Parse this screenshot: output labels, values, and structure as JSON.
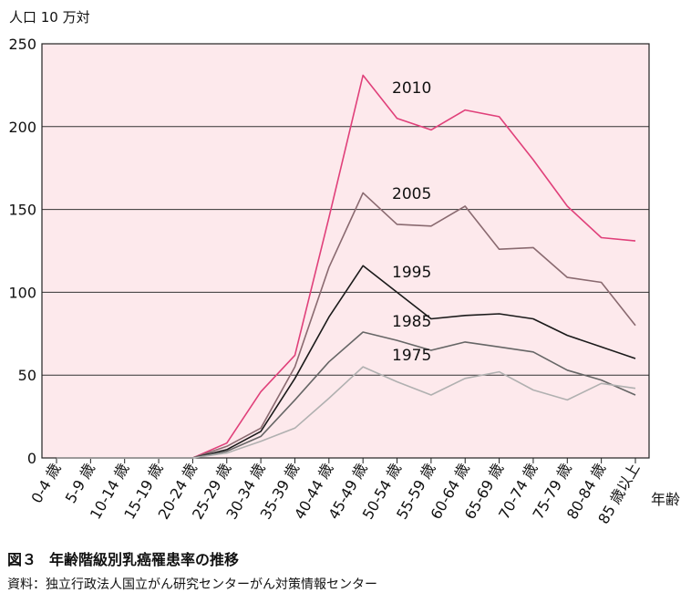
{
  "chart_data": {
    "type": "line",
    "ylabel": "人口 10 万対",
    "xlabel": "年齢",
    "ylim": [
      0,
      250
    ],
    "yticks": [
      0,
      50,
      100,
      150,
      200,
      250
    ],
    "grid": true,
    "background": "#fde9ec",
    "categories": [
      "0-4 歳",
      "5-9 歳",
      "10-14 歳",
      "15-19 歳",
      "20-24 歳",
      "25-29 歳",
      "30-34 歳",
      "35-39 歳",
      "40-44 歳",
      "45-49 歳",
      "50-54 歳",
      "55-59 歳",
      "60-64 歳",
      "65-69 歳",
      "70-74 歳",
      "75-79 歳",
      "80-84 歳",
      "85 歳以上"
    ],
    "series": [
      {
        "name": "2010",
        "color": "#e0407a",
        "values": [
          0,
          0,
          0,
          0,
          0,
          9,
          40,
          62,
          145,
          231,
          205,
          198,
          210,
          206,
          180,
          152,
          133,
          131
        ]
      },
      {
        "name": "2005",
        "color": "#8a6a70",
        "values": [
          0,
          0,
          0,
          0,
          0,
          7,
          18,
          55,
          115,
          160,
          141,
          140,
          152,
          126,
          127,
          109,
          106,
          80
        ]
      },
      {
        "name": "1995",
        "color": "#1a1a1a",
        "values": [
          0,
          0,
          0,
          0,
          0,
          5,
          16,
          48,
          85,
          116,
          100,
          84,
          86,
          87,
          84,
          74,
          67,
          60
        ]
      },
      {
        "name": "1985",
        "color": "#666666",
        "values": [
          0,
          0,
          0,
          0,
          0,
          4,
          13,
          35,
          58,
          76,
          71,
          65,
          70,
          67,
          64,
          53,
          47,
          38
        ]
      },
      {
        "name": "1975",
        "color": "#b0b0b0",
        "values": [
          0,
          0,
          0,
          0,
          0,
          3,
          10,
          18,
          36,
          55,
          46,
          38,
          48,
          52,
          41,
          35,
          45,
          42
        ]
      }
    ]
  },
  "caption": {
    "figure_label": "図３",
    "title": "年齢階級別乳癌罹患率の推移",
    "source": "資料：独立行政法人国立がん研究センターがん対策情報センター"
  }
}
